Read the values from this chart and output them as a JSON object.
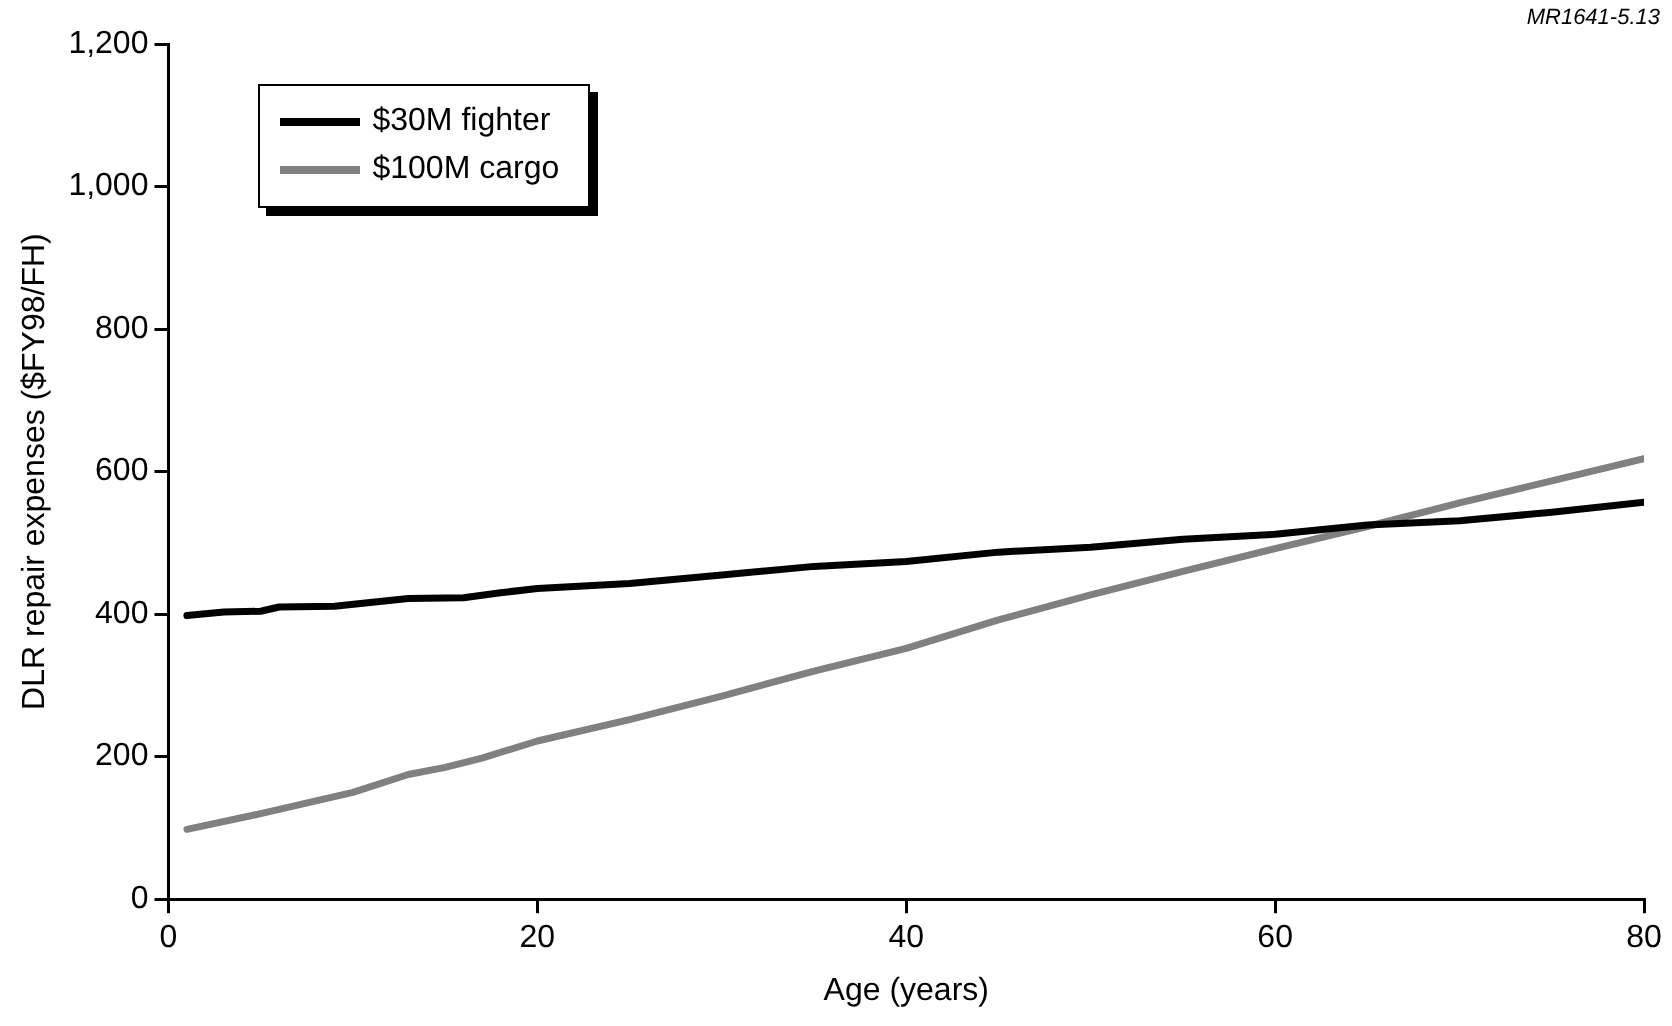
{
  "chart_data": {
    "type": "line",
    "xlabel": "Age (years)",
    "ylabel": "DLR repair expenses ($FY98/FH)",
    "annotations": [
      "MR1641-5.13"
    ],
    "xlim": [
      0,
      80
    ],
    "xticks": [
      0,
      20,
      40,
      60,
      80
    ],
    "ylim": [
      0,
      1200
    ],
    "yticks": [
      0,
      200,
      400,
      600,
      800,
      {
        "value": 1000,
        "label": "1,000"
      },
      {
        "value": 1200,
        "label": "1,200"
      }
    ],
    "grid": false,
    "legend": "top left",
    "marker": "none",
    "line_style": "solid",
    "series": [
      {
        "name": "$30M fighter",
        "color": "#000000",
        "x": [
          1,
          3,
          5,
          6,
          9,
          13,
          16,
          18,
          20,
          25,
          30,
          35,
          40,
          45,
          50,
          55,
          60,
          65,
          70,
          75,
          80
        ],
        "values": [
          398,
          403,
          404,
          410,
          411,
          422,
          423,
          430,
          436,
          443,
          455,
          467,
          474,
          487,
          494,
          505,
          512,
          525,
          531,
          543,
          557
        ]
      },
      {
        "name": "$100M cargo",
        "color": "#808080",
        "x": [
          1,
          5,
          10,
          13,
          15,
          17,
          20,
          25,
          30,
          35,
          40,
          45,
          50,
          55,
          60,
          65,
          70,
          75,
          80
        ],
        "values": [
          98,
          120,
          150,
          175,
          185,
          198,
          222,
          252,
          285,
          320,
          352,
          392,
          427,
          460,
          492,
          523,
          556,
          587,
          618
        ]
      }
    ]
  }
}
